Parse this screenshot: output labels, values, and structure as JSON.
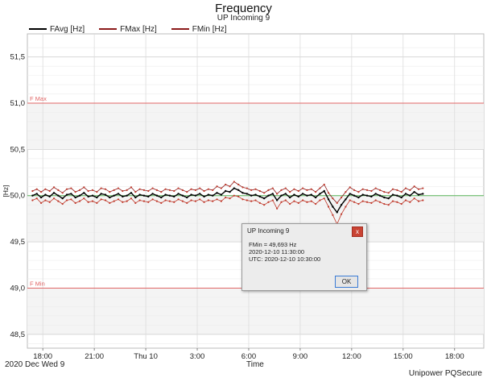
{
  "chart_data": {
    "type": "line",
    "title": "Frequency",
    "subtitle": "UP Incoming 9",
    "ylabel": "[Hz]",
    "xlabel": "Time",
    "ylim": [
      48.35,
      51.75
    ],
    "xlim": [
      -0.9,
      25.7
    ],
    "yticks": [
      {
        "value": 48.5,
        "label": "48,5"
      },
      {
        "value": 49.0,
        "label": "49,0"
      },
      {
        "value": 49.5,
        "label": "49,5"
      },
      {
        "value": 50.0,
        "label": "50,0"
      },
      {
        "value": 50.5,
        "label": "50,5"
      },
      {
        "value": 51.0,
        "label": "51,0"
      },
      {
        "value": 51.5,
        "label": "51,5"
      }
    ],
    "xticks": [
      {
        "value": 0,
        "label": "18:00"
      },
      {
        "value": 3,
        "label": "21:00"
      },
      {
        "value": 6,
        "label": "Thu 10"
      },
      {
        "value": 9,
        "label": "3:00"
      },
      {
        "value": 12,
        "label": "6:00"
      },
      {
        "value": 15,
        "label": "9:00"
      },
      {
        "value": 18,
        "label": "12:00"
      },
      {
        "value": 21,
        "label": "15:00"
      },
      {
        "value": 24,
        "label": "18:00"
      }
    ],
    "reference_lines": [
      {
        "label": "F Max",
        "value": 51.0,
        "color": "#e06666"
      },
      {
        "label": "F Min",
        "value": 49.0,
        "color": "#e06666"
      },
      {
        "label": "",
        "value": 50.0,
        "color": "#5cb85c"
      }
    ],
    "legend_position": "top-left",
    "grid": true,
    "x": [
      -0.6,
      -0.35,
      -0.1,
      0.15,
      0.4,
      0.65,
      0.9,
      1.15,
      1.4,
      1.65,
      1.9,
      2.15,
      2.4,
      2.65,
      2.9,
      3.15,
      3.4,
      3.65,
      3.9,
      4.15,
      4.4,
      4.65,
      4.9,
      5.15,
      5.4,
      5.65,
      5.9,
      6.15,
      6.4,
      6.65,
      6.9,
      7.15,
      7.4,
      7.65,
      7.9,
      8.15,
      8.4,
      8.65,
      8.9,
      9.15,
      9.4,
      9.65,
      9.9,
      10.15,
      10.4,
      10.65,
      10.9,
      11.15,
      11.4,
      11.65,
      11.9,
      12.15,
      12.4,
      12.65,
      12.9,
      13.15,
      13.4,
      13.65,
      13.9,
      14.15,
      14.4,
      14.65,
      14.9,
      15.15,
      15.4,
      15.65,
      15.9,
      16.15,
      16.4,
      16.65,
      16.9,
      17.15,
      17.4,
      17.65,
      17.9,
      18.15,
      18.4,
      18.65,
      18.9,
      19.15,
      19.4,
      19.65,
      19.9,
      20.15,
      20.4,
      20.65,
      20.9,
      21.15,
      21.4,
      21.65,
      21.9,
      22.15
    ],
    "series": [
      {
        "name": "FAvg [Hz]",
        "color": "#000000",
        "values": [
          50.0,
          50.02,
          49.98,
          50.01,
          49.99,
          50.03,
          50.0,
          49.97,
          50.01,
          50.02,
          49.98,
          50.0,
          50.03,
          49.99,
          50.0,
          49.98,
          50.02,
          50.01,
          49.98,
          50.0,
          50.02,
          49.99,
          50.0,
          50.03,
          49.98,
          50.01,
          50.0,
          49.99,
          50.02,
          50.0,
          49.98,
          50.01,
          50.0,
          49.99,
          50.02,
          50.0,
          49.98,
          50.01,
          50.0,
          50.02,
          49.99,
          50.01,
          50.0,
          50.03,
          50.01,
          50.05,
          50.04,
          50.08,
          50.06,
          50.03,
          50.02,
          50.0,
          50.01,
          49.99,
          49.97,
          50.0,
          50.02,
          49.95,
          50.0,
          50.02,
          49.98,
          50.01,
          49.99,
          50.02,
          50.0,
          50.01,
          49.98,
          50.02,
          50.05,
          49.96,
          49.88,
          49.82,
          49.9,
          49.96,
          50.02,
          50.0,
          49.98,
          50.01,
          50.0,
          49.99,
          50.02,
          50.0,
          49.98,
          49.97,
          50.01,
          50.0,
          49.98,
          50.02,
          50.0,
          50.04,
          50.01,
          50.02
        ]
      },
      {
        "name": "FMax [Hz]",
        "color": "#8b1a1a",
        "values": [
          50.05,
          50.07,
          50.04,
          50.07,
          50.05,
          50.09,
          50.06,
          50.03,
          50.07,
          50.08,
          50.04,
          50.06,
          50.09,
          50.05,
          50.06,
          50.04,
          50.08,
          50.07,
          50.04,
          50.06,
          50.08,
          50.05,
          50.06,
          50.09,
          50.04,
          50.07,
          50.06,
          50.05,
          50.08,
          50.06,
          50.04,
          50.07,
          50.06,
          50.05,
          50.08,
          50.06,
          50.04,
          50.07,
          50.06,
          50.08,
          50.05,
          50.07,
          50.06,
          50.1,
          50.08,
          50.12,
          50.1,
          50.15,
          50.12,
          50.09,
          50.08,
          50.06,
          50.07,
          50.05,
          50.03,
          50.06,
          50.08,
          50.02,
          50.06,
          50.08,
          50.04,
          50.07,
          50.05,
          50.08,
          50.06,
          50.07,
          50.04,
          50.08,
          50.12,
          50.03,
          49.97,
          49.92,
          49.98,
          50.04,
          50.09,
          50.06,
          50.04,
          50.07,
          50.06,
          50.05,
          50.08,
          50.06,
          50.04,
          50.03,
          50.07,
          50.06,
          50.04,
          50.08,
          50.06,
          50.1,
          50.07,
          50.08
        ]
      },
      {
        "name": "FMin [Hz]",
        "color": "#c0392b",
        "values": [
          49.95,
          49.97,
          49.92,
          49.95,
          49.93,
          49.97,
          49.94,
          49.91,
          49.95,
          49.96,
          49.92,
          49.94,
          49.97,
          49.93,
          49.94,
          49.92,
          49.96,
          49.95,
          49.92,
          49.94,
          49.96,
          49.93,
          49.94,
          49.97,
          49.92,
          49.95,
          49.94,
          49.93,
          49.96,
          49.94,
          49.92,
          49.95,
          49.94,
          49.93,
          49.96,
          49.94,
          49.92,
          49.95,
          49.94,
          49.96,
          49.93,
          49.95,
          49.94,
          49.96,
          49.94,
          49.98,
          49.97,
          50.0,
          49.99,
          49.96,
          49.95,
          49.94,
          49.95,
          49.92,
          49.9,
          49.93,
          49.95,
          49.86,
          49.93,
          49.95,
          49.91,
          49.94,
          49.92,
          49.95,
          49.93,
          49.94,
          49.91,
          49.95,
          49.97,
          49.88,
          49.79,
          49.693,
          49.8,
          49.88,
          49.95,
          49.93,
          49.91,
          49.94,
          49.93,
          49.92,
          49.95,
          49.93,
          49.91,
          49.9,
          49.94,
          49.93,
          49.91,
          49.95,
          49.93,
          49.97,
          49.94,
          49.95
        ]
      }
    ]
  },
  "footer": {
    "date_label": "2020 Dec Wed 9",
    "xlabel": "Time",
    "brand": "Unipower PQSecure"
  },
  "popup": {
    "title": "UP Incoming 9",
    "close_glyph": "x",
    "line1": "FMin = 49,693 Hz",
    "line2": "2020-12-10  11:30:00",
    "line3": "UTC: 2020-12-10 10:30:00",
    "ok_label": "OK"
  }
}
